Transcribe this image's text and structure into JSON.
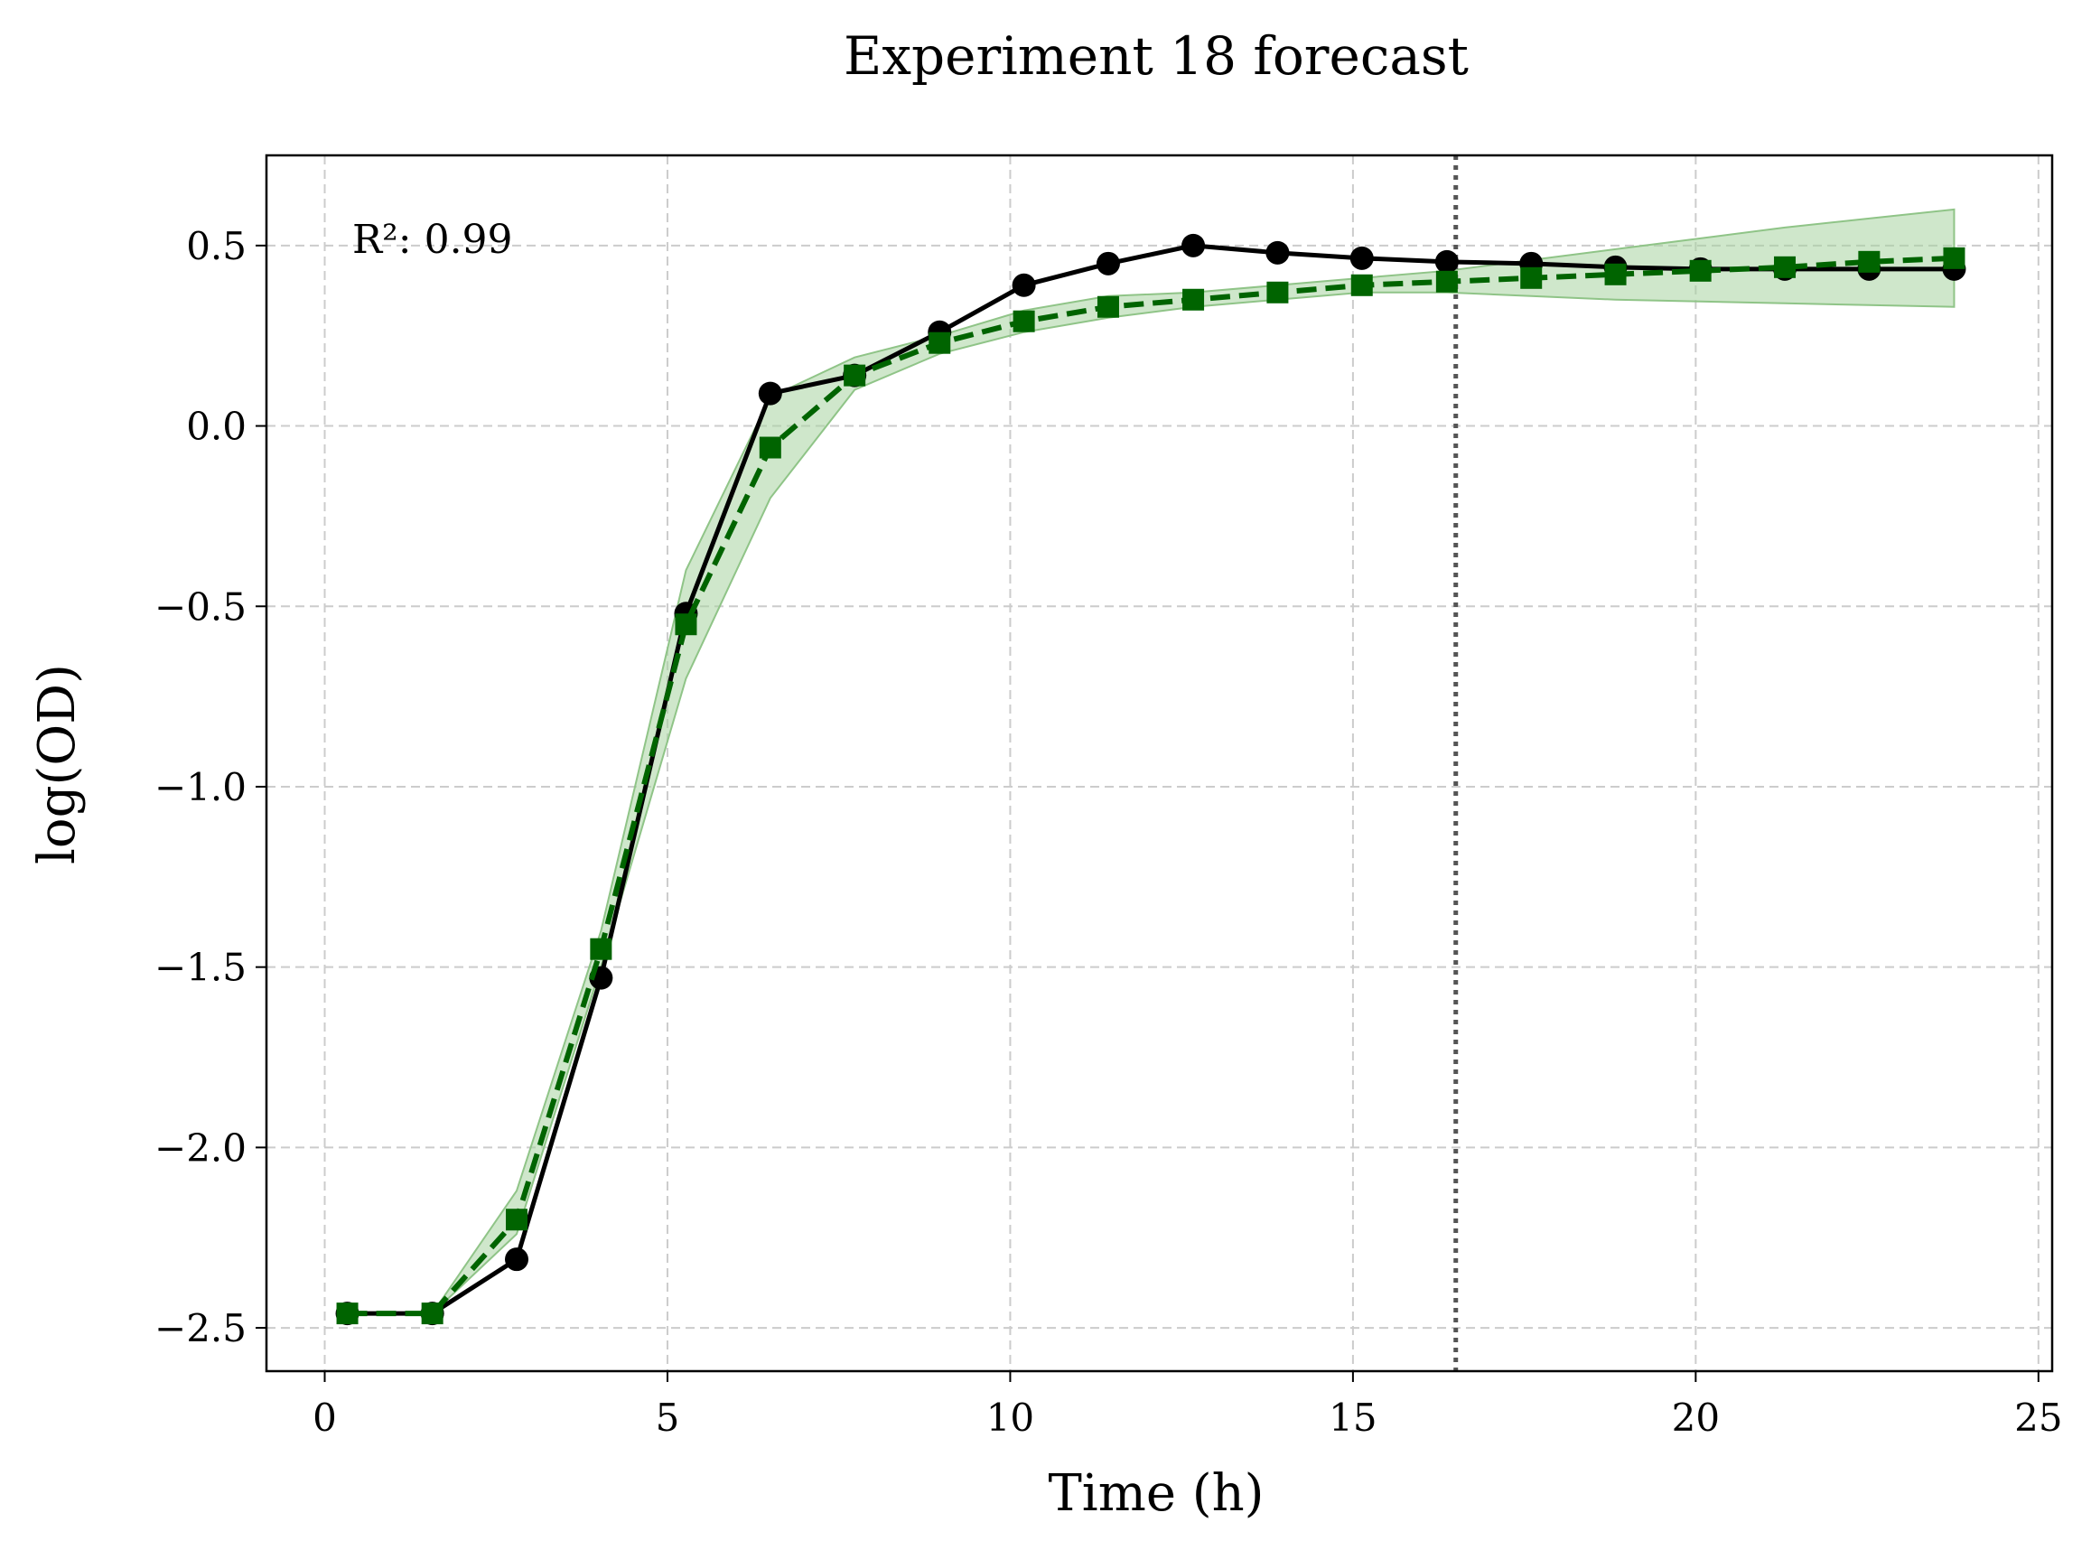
{
  "chart_data": {
    "type": "line",
    "title": "Experiment 18 forecast",
    "xlabel": "Time (h)",
    "ylabel": "log(OD)",
    "xlim": [
      -0.85,
      25.2
    ],
    "ylim": [
      -2.62,
      0.75
    ],
    "xticks": [
      0,
      5,
      10,
      15,
      20,
      25
    ],
    "xtick_labels": [
      "0",
      "5",
      "10",
      "15",
      "20",
      "25"
    ],
    "yticks": [
      -2.5,
      -2.0,
      -1.5,
      -1.0,
      -0.5,
      0.0,
      0.5
    ],
    "ytick_labels": [
      "−2.5",
      "−2.0",
      "−1.5",
      "−1.0",
      "−0.5",
      "0.0",
      "0.5"
    ],
    "grid": true,
    "annotation": "R²: 0.99",
    "forecast_start": 16.5,
    "x": [
      0.33,
      1.57,
      2.8,
      4.03,
      5.27,
      6.5,
      7.73,
      8.97,
      10.2,
      11.43,
      12.67,
      13.9,
      15.13,
      16.37,
      17.6,
      18.83,
      20.07,
      21.3,
      22.53,
      23.77
    ],
    "series": [
      {
        "style": "solid-circle",
        "color": "#000000",
        "values": [
          -2.46,
          -2.46,
          -2.31,
          -1.53,
          -0.52,
          0.09,
          0.14,
          0.26,
          0.39,
          0.45,
          0.5,
          0.48,
          0.465,
          0.455,
          0.45,
          0.44,
          0.435,
          0.435,
          0.435,
          0.435
        ]
      },
      {
        "style": "dashed-square",
        "color": "#006400",
        "values": [
          -2.46,
          -2.46,
          -2.2,
          -1.45,
          -0.55,
          -0.06,
          0.14,
          0.23,
          0.29,
          0.33,
          0.35,
          0.37,
          0.39,
          0.4,
          0.41,
          0.42,
          0.43,
          0.44,
          0.455,
          0.465
        ],
        "band_lower": [
          -2.46,
          -2.46,
          -2.24,
          -1.5,
          -0.7,
          -0.2,
          0.1,
          0.2,
          0.26,
          0.3,
          0.33,
          0.35,
          0.37,
          0.37,
          0.36,
          0.35,
          0.345,
          0.34,
          0.335,
          0.33
        ],
        "band_upper": [
          -2.46,
          -2.46,
          -2.12,
          -1.4,
          -0.4,
          0.08,
          0.19,
          0.25,
          0.32,
          0.36,
          0.37,
          0.39,
          0.41,
          0.43,
          0.46,
          0.49,
          0.52,
          0.55,
          0.575,
          0.6
        ],
        "band_color": "#a8d3a0"
      }
    ]
  }
}
